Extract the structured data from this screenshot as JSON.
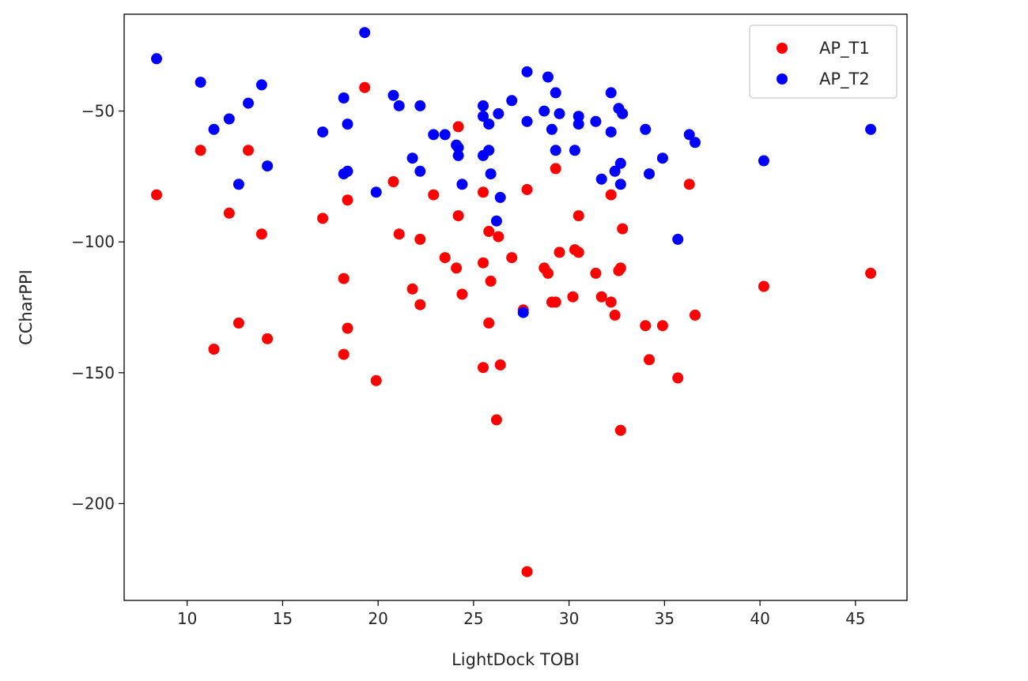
{
  "chart_data": {
    "type": "scatter",
    "title": "",
    "xlabel": "LightDock TOBI",
    "ylabel": "CCharPPI",
    "xlim": [
      6.7,
      47.7
    ],
    "ylim": [
      -237,
      -13
    ],
    "xticks": [
      10,
      15,
      20,
      25,
      30,
      35,
      40,
      45
    ],
    "yticks": [
      -50,
      -100,
      -150,
      -200
    ],
    "grid": false,
    "legend_position": "top-right",
    "series": [
      {
        "name": "AP_T1",
        "color": "#ff0000",
        "x": [
          8.4,
          10.7,
          12.2,
          12.7,
          13.2,
          13.9,
          14.2,
          11.4,
          17.1,
          18.2,
          18.4,
          18.2,
          18.4,
          19.3,
          19.9,
          20.8,
          21.1,
          21.8,
          22.2,
          22.2,
          22.9,
          23.5,
          24.1,
          24.2,
          24.2,
          24.4,
          25.5,
          25.5,
          25.5,
          25.8,
          25.8,
          25.9,
          26.2,
          26.4,
          26.3,
          27.0,
          27.8,
          27.8,
          27.6,
          28.7,
          28.9,
          29.1,
          29.3,
          29.3,
          29.5,
          30.3,
          30.2,
          30.5,
          30.5,
          31.4,
          31.7,
          32.2,
          32.2,
          32.4,
          32.6,
          32.7,
          32.8,
          32.7,
          34.0,
          34.2,
          34.9,
          35.7,
          36.3,
          36.6,
          40.2,
          45.8
        ],
        "y": [
          -82,
          -65,
          -89,
          -131,
          -65,
          -97,
          -137,
          -141,
          -91,
          -114,
          -84,
          -143,
          -133,
          -41,
          -153,
          -77,
          -97,
          -118,
          -99,
          -124,
          -82,
          -106,
          -110,
          -56,
          -90,
          -120,
          -81,
          -108,
          -148,
          -96,
          -131,
          -115,
          -168,
          -147,
          -98,
          -106,
          -80,
          -226,
          -126,
          -110,
          -112,
          -123,
          -72,
          -123,
          -104,
          -103,
          -121,
          -90,
          -104,
          -112,
          -121,
          -82,
          -123,
          -128,
          -111,
          -110,
          -95,
          -172,
          -132,
          -145,
          -132,
          -152,
          -78,
          -128,
          -117,
          -112
        ]
      },
      {
        "name": "AP_T2",
        "color": "#0000ff",
        "x": [
          8.4,
          10.7,
          11.4,
          12.2,
          12.7,
          13.2,
          13.9,
          14.2,
          17.1,
          18.2,
          18.4,
          18.2,
          18.4,
          19.3,
          19.9,
          20.8,
          21.1,
          21.8,
          22.2,
          22.2,
          22.9,
          23.5,
          24.1,
          24.2,
          24.2,
          24.4,
          25.5,
          25.5,
          25.5,
          25.8,
          25.8,
          25.9,
          26.2,
          26.3,
          26.4,
          27.0,
          27.6,
          27.8,
          27.8,
          28.7,
          28.9,
          29.1,
          29.3,
          29.3,
          29.5,
          30.3,
          30.5,
          30.5,
          31.4,
          31.7,
          32.2,
          32.2,
          32.4,
          32.6,
          32.7,
          32.8,
          32.7,
          34.0,
          34.2,
          34.9,
          35.7,
          36.3,
          36.6,
          40.2,
          45.8
        ],
        "y": [
          -30,
          -39,
          -57,
          -53,
          -78,
          -47,
          -40,
          -71,
          -58,
          -45,
          -55,
          -74,
          -73,
          -20,
          -81,
          -44,
          -48,
          -68,
          -48,
          -73,
          -59,
          -59,
          -63,
          -64,
          -67,
          -78,
          -48,
          -52,
          -67,
          -65,
          -55,
          -74,
          -92,
          -51,
          -83,
          -46,
          -127,
          -54,
          -35,
          -50,
          -37,
          -57,
          -43,
          -65,
          -51,
          -65,
          -52,
          -55,
          -54,
          -76,
          -43,
          -58,
          -73,
          -49,
          -70,
          -51,
          -78,
          -57,
          -74,
          -68,
          -99,
          -59,
          -62,
          -69,
          -57
        ]
      }
    ]
  }
}
